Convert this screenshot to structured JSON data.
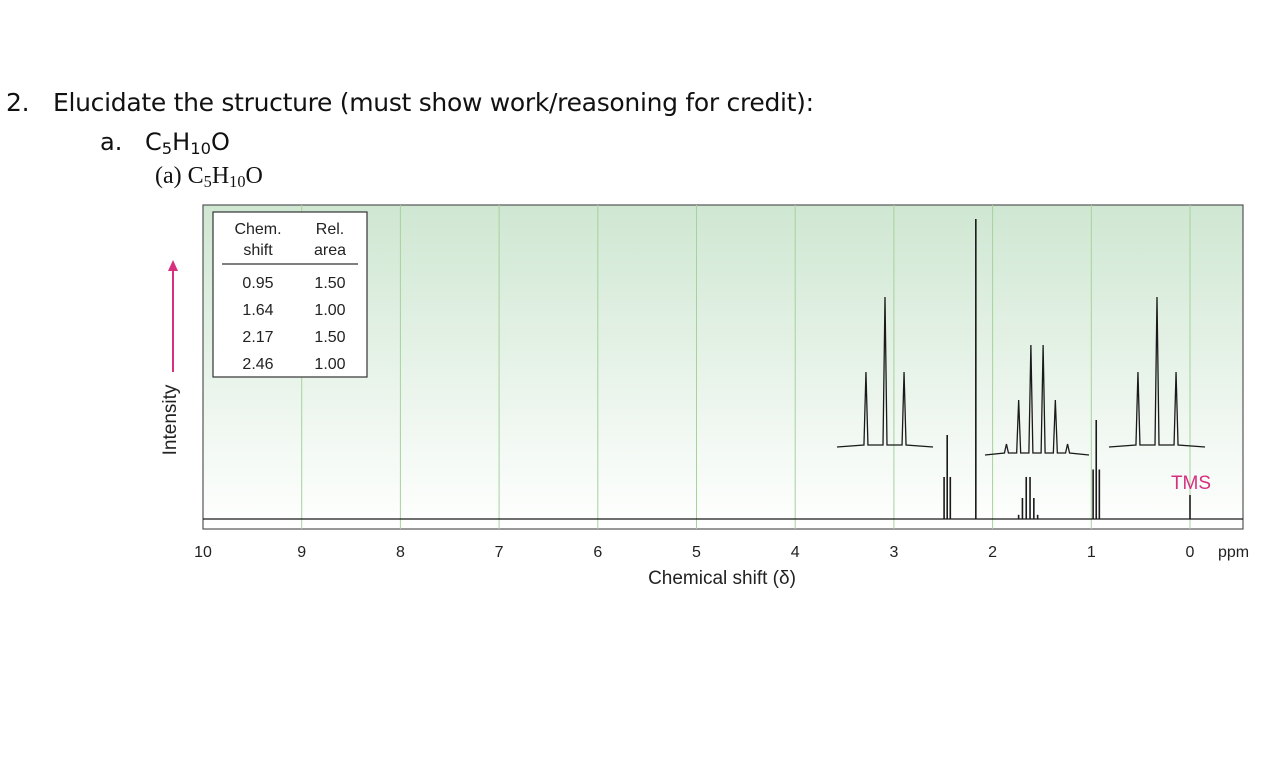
{
  "question": {
    "number": "2.",
    "text": "Elucidate the structure (must show work/reasoning for credit):",
    "part_letter": "a.",
    "formula_parts": [
      "C",
      "5",
      "H",
      "10",
      "O"
    ]
  },
  "figure": {
    "label": "(a)",
    "formula_parts": [
      "C",
      "5",
      "H",
      "10",
      "O"
    ]
  },
  "colors": {
    "plot_bg_top": "#cfe7d2",
    "plot_bg_bottom": "#ffffff",
    "grid": "#a6d29c",
    "trace": "#1a1a1a",
    "accent": "#d6307f"
  },
  "chart_data": {
    "type": "line",
    "title": "",
    "xlabel": "Chemical shift (δ)",
    "ylabel": "Intensity",
    "unit": "ppm",
    "xlim": [
      10,
      0
    ],
    "x_reversed": true,
    "x_ticks": [
      10,
      9,
      8,
      7,
      6,
      5,
      4,
      3,
      2,
      1,
      0
    ],
    "grid": true,
    "integration_table": {
      "headers": [
        [
          "Chem.",
          "shift"
        ],
        [
          "Rel.",
          "area"
        ]
      ],
      "rows": [
        [
          "0.95",
          "1.50"
        ],
        [
          "1.64",
          "1.00"
        ],
        [
          "2.17",
          "1.50"
        ],
        [
          "2.46",
          "1.00"
        ]
      ]
    },
    "peaks": [
      {
        "shift": 2.46,
        "multiplicity": "triplet",
        "relative_area": 1.0,
        "height": 0.28
      },
      {
        "shift": 2.17,
        "multiplicity": "singlet",
        "relative_area": 1.5,
        "height": 1.0
      },
      {
        "shift": 1.64,
        "multiplicity": "sextet",
        "relative_area": 1.0,
        "height": 0.14
      },
      {
        "shift": 0.95,
        "multiplicity": "triplet",
        "relative_area": 1.5,
        "height": 0.33
      },
      {
        "shift": 0.0,
        "multiplicity": "singlet",
        "label": "TMS",
        "height": 0.08
      }
    ],
    "expansions": [
      {
        "of_shift": 2.46,
        "multiplicity": "triplet"
      },
      {
        "of_shift": 1.64,
        "multiplicity": "sextet"
      },
      {
        "of_shift": 0.95,
        "multiplicity": "triplet"
      }
    ]
  }
}
